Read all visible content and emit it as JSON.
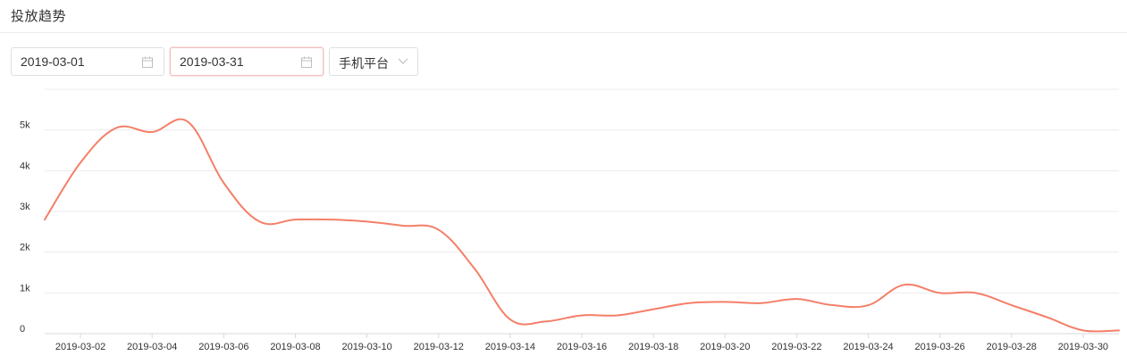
{
  "header": {
    "title": "投放趋势"
  },
  "filters": {
    "start_date": "2019-03-01",
    "end_date": "2019-03-31",
    "platform": "手机平台"
  },
  "chart_data": {
    "type": "line",
    "color": "#f47f68",
    "x": [
      "2019-03-01",
      "2019-03-02",
      "2019-03-03",
      "2019-03-04",
      "2019-03-05",
      "2019-03-06",
      "2019-03-07",
      "2019-03-08",
      "2019-03-09",
      "2019-03-10",
      "2019-03-11",
      "2019-03-12",
      "2019-03-13",
      "2019-03-14",
      "2019-03-15",
      "2019-03-16",
      "2019-03-17",
      "2019-03-18",
      "2019-03-19",
      "2019-03-20",
      "2019-03-21",
      "2019-03-22",
      "2019-03-23",
      "2019-03-24",
      "2019-03-25",
      "2019-03-26",
      "2019-03-27",
      "2019-03-28",
      "2019-03-29",
      "2019-03-30",
      "2019-03-31"
    ],
    "values": [
      2800,
      4200,
      5050,
      4950,
      5200,
      3700,
      2750,
      2800,
      2800,
      2750,
      2650,
      2550,
      1600,
      350,
      300,
      450,
      450,
      600,
      750,
      780,
      750,
      850,
      700,
      700,
      1200,
      1000,
      1000,
      700,
      400,
      80,
      80
    ],
    "xticks": [
      "2019-03-02",
      "2019-03-04",
      "2019-03-06",
      "2019-03-08",
      "2019-03-10",
      "2019-03-12",
      "2019-03-14",
      "2019-03-16",
      "2019-03-18",
      "2019-03-20",
      "2019-03-22",
      "2019-03-24",
      "2019-03-26",
      "2019-03-28",
      "2019-03-30"
    ],
    "ytick_values": [
      0,
      1000,
      2000,
      3000,
      4000,
      5000
    ],
    "ytick_labels": [
      "0",
      "1k",
      "2k",
      "3k",
      "4k",
      "5k"
    ],
    "ylim": [
      0,
      6000
    ],
    "grid": true,
    "legend": false
  }
}
